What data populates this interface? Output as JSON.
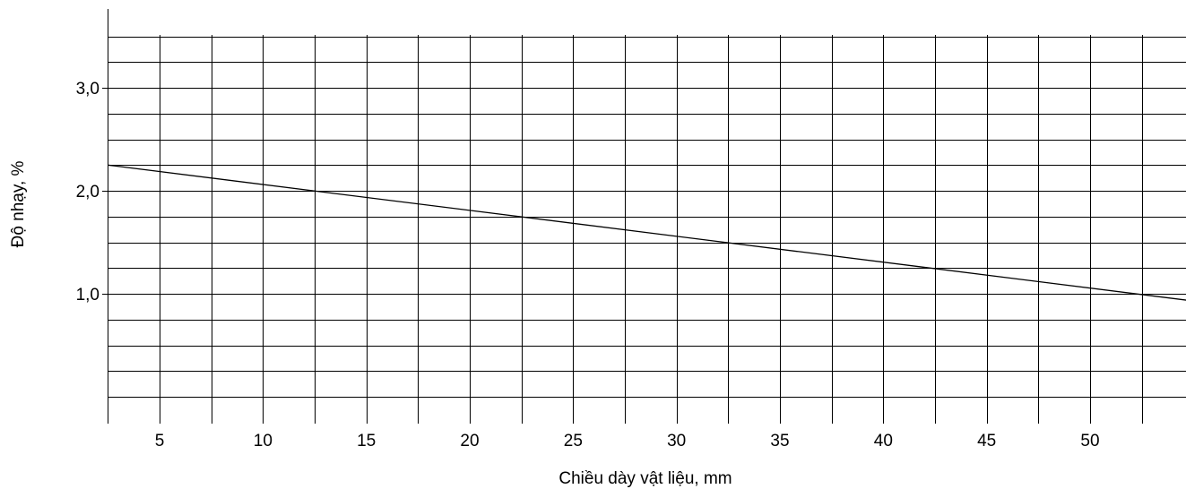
{
  "chart_data": {
    "type": "line",
    "title": "",
    "xlabel": "Chiều dày vật liệu, mm",
    "ylabel": "Độ nhạy, %",
    "xlim": [
      2.5,
      55
    ],
    "ylim": [
      -0.25,
      3.6
    ],
    "grid": true,
    "x_ticks": [
      5,
      10,
      15,
      20,
      25,
      30,
      35,
      40,
      45,
      50
    ],
    "x_tick_labels": [
      "5",
      "10",
      "15",
      "20",
      "25",
      "30",
      "35",
      "40",
      "45",
      "50"
    ],
    "y_ticks": [
      1.0,
      2.0,
      3.0
    ],
    "y_tick_labels": [
      "1,0",
      "2,0",
      "3,0"
    ],
    "series": [
      {
        "x": [
          2.5,
          55
        ],
        "y": [
          2.25,
          0.93
        ]
      }
    ],
    "colors": {
      "grid": "#000000",
      "line": "#000000",
      "background": "#ffffff"
    }
  }
}
